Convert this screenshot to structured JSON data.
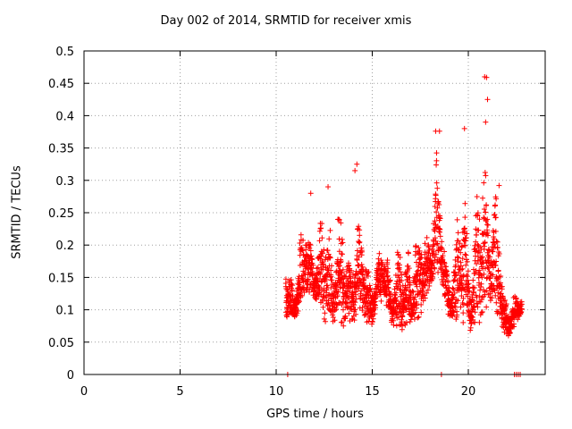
{
  "chart_data": {
    "type": "scatter",
    "title": "Day 002 of 2014, SRMTID for receiver xmis",
    "xlabel": "GPS time / hours",
    "ylabel": "SRMTID / TECUs",
    "xlim": [
      0,
      24
    ],
    "ylim": [
      0,
      0.5
    ],
    "xticks": [
      "0",
      "5",
      "10",
      "15",
      "20"
    ],
    "xtick_values": [
      0,
      5,
      10,
      15,
      20
    ],
    "yticks": [
      "0",
      "0.05",
      "0.1",
      "0.15",
      "0.2",
      "0.25",
      "0.3",
      "0.35",
      "0.4",
      "0.45",
      "0.5"
    ],
    "ytick_values": [
      0,
      0.05,
      0.1,
      0.15,
      0.2,
      0.25,
      0.3,
      0.35,
      0.4,
      0.45,
      0.5
    ],
    "grid": true,
    "marker": "+",
    "color": "#ff0000",
    "generation": {
      "start_hour": 10.5,
      "end_hour": 22.8,
      "step_hour": 0.012,
      "points_per_step": 2,
      "envelope": [
        [
          10.5,
          0.08,
          0.2
        ],
        [
          11.0,
          0.09,
          0.17
        ],
        [
          11.3,
          0.1,
          0.23
        ],
        [
          11.6,
          0.12,
          0.28
        ],
        [
          12.0,
          0.12,
          0.24
        ],
        [
          12.4,
          0.09,
          0.25
        ],
        [
          12.8,
          0.07,
          0.29
        ],
        [
          13.2,
          0.09,
          0.29
        ],
        [
          13.6,
          0.07,
          0.23
        ],
        [
          14.0,
          0.08,
          0.32
        ],
        [
          14.4,
          0.1,
          0.25
        ],
        [
          14.8,
          0.06,
          0.22
        ],
        [
          15.2,
          0.1,
          0.2
        ],
        [
          15.6,
          0.12,
          0.22
        ],
        [
          16.0,
          0.08,
          0.2
        ],
        [
          16.5,
          0.06,
          0.22
        ],
        [
          17.0,
          0.07,
          0.28
        ],
        [
          17.5,
          0.09,
          0.24
        ],
        [
          18.0,
          0.13,
          0.29
        ],
        [
          18.3,
          0.15,
          0.38
        ],
        [
          18.7,
          0.13,
          0.24
        ],
        [
          19.0,
          0.08,
          0.22
        ],
        [
          19.4,
          0.07,
          0.24
        ],
        [
          19.8,
          0.08,
          0.38
        ],
        [
          20.2,
          0.06,
          0.22
        ],
        [
          20.6,
          0.08,
          0.35
        ],
        [
          20.9,
          0.1,
          0.46
        ],
        [
          21.1,
          0.12,
          0.35
        ],
        [
          21.5,
          0.08,
          0.3
        ],
        [
          21.8,
          0.06,
          0.18
        ],
        [
          22.1,
          0.06,
          0.14
        ],
        [
          22.5,
          0.08,
          0.12
        ],
        [
          22.8,
          0.1,
          0.12
        ]
      ]
    },
    "outliers": [
      {
        "x": 18.3,
        "y": 0.376
      },
      {
        "x": 18.5,
        "y": 0.376
      },
      {
        "x": 19.8,
        "y": 0.38
      },
      {
        "x": 20.85,
        "y": 0.46
      },
      {
        "x": 20.95,
        "y": 0.459
      },
      {
        "x": 21.0,
        "y": 0.425
      },
      {
        "x": 20.9,
        "y": 0.39
      },
      {
        "x": 14.2,
        "y": 0.325
      },
      {
        "x": 14.1,
        "y": 0.315
      },
      {
        "x": 12.7,
        "y": 0.29
      },
      {
        "x": 11.8,
        "y": 0.28
      },
      {
        "x": 21.6,
        "y": 0.292
      }
    ],
    "zero_points": [
      {
        "x": 10.6,
        "y": 0
      },
      {
        "x": 18.6,
        "y": 0
      },
      {
        "x": 22.4,
        "y": 0
      },
      {
        "x": 22.5,
        "y": 0
      },
      {
        "x": 22.6,
        "y": 0
      },
      {
        "x": 22.7,
        "y": 0
      }
    ]
  }
}
